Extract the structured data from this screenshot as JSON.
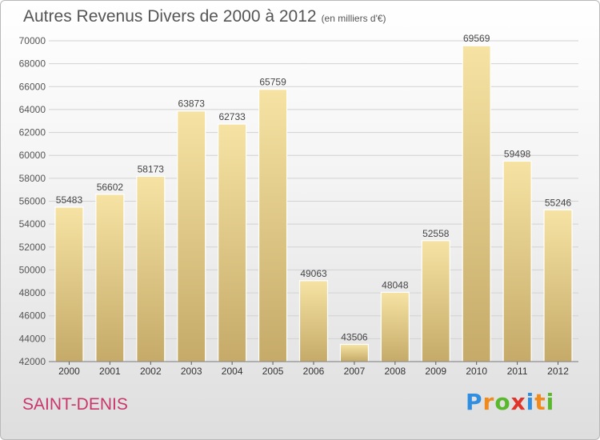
{
  "header": {
    "title": "Autres Revenus Divers de 2000 à 2012",
    "subtitle": "(en milliers d'€)"
  },
  "footer": {
    "place": "SAINT-DENIS",
    "logo": {
      "letters": [
        "P",
        "r",
        "o",
        "x",
        "i",
        "t",
        "i"
      ],
      "colors": [
        "#2f8ee0",
        "#f08a1c",
        "#59b82c",
        "#e0332a",
        "#2f8ee0",
        "#f08a1c",
        "#59b82c"
      ]
    }
  },
  "chart_data": {
    "type": "bar",
    "categories": [
      "2000",
      "2001",
      "2002",
      "2003",
      "2004",
      "2005",
      "2006",
      "2007",
      "2008",
      "2009",
      "2010",
      "2011",
      "2012"
    ],
    "values": [
      55483,
      56602,
      58173,
      63873,
      62733,
      65759,
      49063,
      43506,
      48048,
      52558,
      69569,
      59498,
      55246
    ],
    "ylim": [
      42000,
      70000
    ],
    "yticks": [
      42000,
      44000,
      46000,
      48000,
      50000,
      52000,
      54000,
      56000,
      58000,
      60000,
      62000,
      64000,
      66000,
      68000,
      70000
    ],
    "grid": true,
    "colors": {
      "bar_light": "#f6e3a3",
      "bar_dark": "#c5aa69",
      "label": "#444444",
      "axis": "#555555"
    }
  }
}
